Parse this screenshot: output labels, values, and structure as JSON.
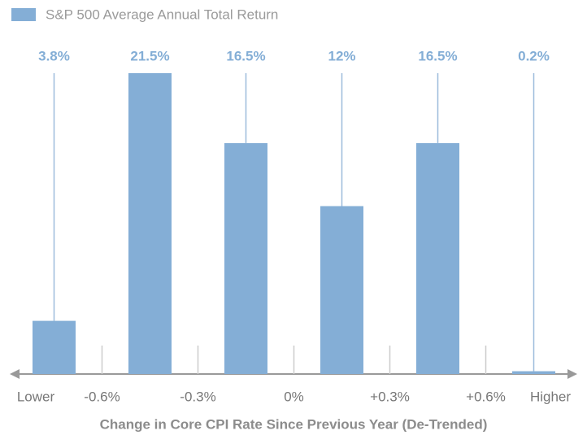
{
  "chart_data": {
    "type": "bar",
    "series": [
      {
        "name": "S&P 500 Average Annual Total Return",
        "color": "#84aed6",
        "values": [
          3.8,
          21.5,
          16.5,
          12,
          16.5,
          0.2
        ],
        "value_labels": [
          "3.8%",
          "21.5%",
          "16.5%",
          "12%",
          "16.5%",
          "0.2%"
        ]
      }
    ],
    "x_labels": [
      "Lower",
      "-0.6%",
      "-0.3%",
      "0%",
      "+0.3%",
      "+0.6%",
      "Higher"
    ],
    "x_label": "Change in Core CPI Rate Since Previous Year (De-Trended)",
    "ylim": [
      0,
      21.5
    ]
  }
}
